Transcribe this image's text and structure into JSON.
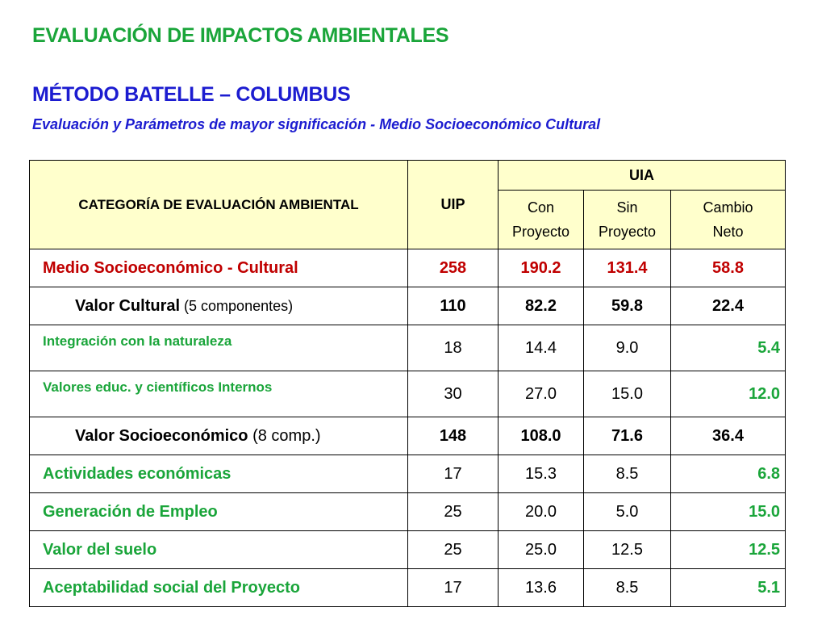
{
  "title1": "EVALUACIÓN DE IMPACTOS AMBIENTALES",
  "title2": "MÉTODO BATELLE – COLUMBUS",
  "subtitle": "Evaluación y Parámetros de mayor significación - Medio Socioeconómico Cultural",
  "table": {
    "headers": {
      "category": "CATEGORÍA DE EVALUACIÓN AMBIENTAL",
      "uip": "UIP",
      "uia": "UIA",
      "con_1": "Con",
      "con_2": "Proyecto",
      "sin_1": "Sin",
      "sin_2": "Proyecto",
      "cambio_1": "Cambio",
      "cambio_2": "Neto"
    },
    "rows": [
      {
        "label": "Medio Socioeconómico - Cultural",
        "paren": "",
        "uip": "258",
        "con": "190.2",
        "sin": "131.4",
        "cambio": "58.8"
      },
      {
        "label": "Valor Cultural",
        "paren": " (5 componentes)",
        "uip": "110",
        "con": "82.2",
        "sin": "59.8",
        "cambio": "22.4"
      },
      {
        "label": "Integración con la naturaleza",
        "paren": "",
        "uip": "18",
        "con": "14.4",
        "sin": "9.0",
        "cambio": "5.4"
      },
      {
        "label": "Valores educ. y científicos Internos",
        "paren": "",
        "uip": "30",
        "con": "27.0",
        "sin": "15.0",
        "cambio": "12.0"
      },
      {
        "label": "Valor Socioeconómico",
        "paren": " (8 comp.)",
        "uip": "148",
        "con": "108.0",
        "sin": "71.6",
        "cambio": "36.4"
      },
      {
        "label": "Actividades económicas",
        "paren": "",
        "uip": "17",
        "con": "15.3",
        "sin": "8.5",
        "cambio": "6.8"
      },
      {
        "label": "Generación de Empleo",
        "paren": "",
        "uip": "25",
        "con": "20.0",
        "sin": "5.0",
        "cambio": "15.0"
      },
      {
        "label": "Valor del suelo",
        "paren": "",
        "uip": "25",
        "con": "25.0",
        "sin": "12.5",
        "cambio": "12.5"
      },
      {
        "label": "Aceptabilidad social del Proyecto",
        "paren": "",
        "uip": "17",
        "con": "13.6",
        "sin": "8.5",
        "cambio": "5.1"
      }
    ]
  },
  "colors": {
    "green": "#1aa53a",
    "blue": "#1c1cd0",
    "red": "#c00000",
    "header_bg": "#ffffcc"
  }
}
